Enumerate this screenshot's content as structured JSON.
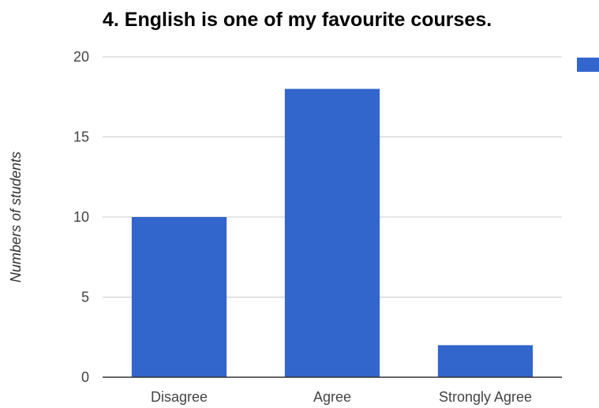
{
  "chart_data": {
    "type": "bar",
    "title": "4. English is one of my favourite courses.",
    "xlabel": "",
    "ylabel": "Numbers of students",
    "categories": [
      "Disagree",
      "Agree",
      "Strongly Agree"
    ],
    "series": [
      {
        "values": [
          10,
          18,
          2
        ],
        "color": "#3366cc"
      }
    ],
    "ylim": [
      0,
      20
    ],
    "yticks": [
      0,
      5,
      10,
      15,
      20
    ],
    "yticks_labels": [
      "0",
      "5",
      "10",
      "15",
      "20"
    ],
    "grid": true,
    "legend": "right",
    "legend_entries": [
      ""
    ]
  }
}
